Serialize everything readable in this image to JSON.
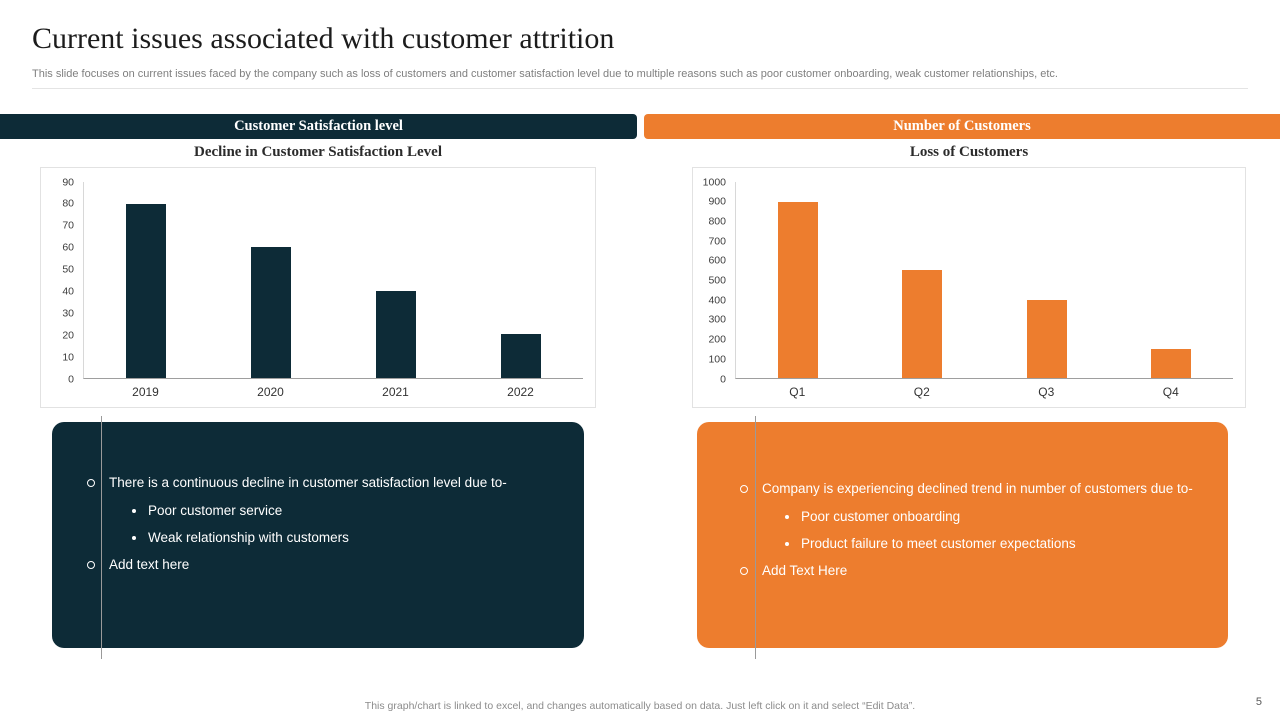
{
  "slide": {
    "title": "Current issues associated with customer attrition",
    "subtitle": "This slide focuses on current issues faced by the company such as loss of customers and customer satisfaction level due to multiple reasons such as poor customer onboarding, weak customer relationships, etc.",
    "footer_text": "This graph/chart is linked to excel, and changes automatically based on data. Just left click on it and select ",
    "footer_highlight": "“Edit Data”",
    "footer_suffix": ".",
    "page_number": "5"
  },
  "colors": {
    "dark": "#0D2B37",
    "orange": "#ED7D2E"
  },
  "sections": {
    "left": {
      "header": "Customer Satisfaction level",
      "bullets": [
        {
          "level": 1,
          "text": "There is a continuous decline in customer satisfaction level due to-"
        },
        {
          "level": 2,
          "text": "Poor customer service"
        },
        {
          "level": 2,
          "text": "Weak relationship with customers"
        },
        {
          "level": 1,
          "text": "Add text here"
        }
      ]
    },
    "right": {
      "header": "Number of Customers",
      "bullets": [
        {
          "level": 1,
          "text": "Company is experiencing declined trend in number of customers due to-"
        },
        {
          "level": 2,
          "text": "Poor customer onboarding"
        },
        {
          "level": 2,
          "text": "Product failure to meet customer expectations"
        },
        {
          "level": 1,
          "text": "Add Text Here"
        }
      ]
    }
  },
  "chart_data": [
    {
      "type": "bar",
      "title": "Decline in Customer Satisfaction Level",
      "categories": [
        "2019",
        "2020",
        "2021",
        "2022"
      ],
      "values": [
        80,
        60,
        40,
        20
      ],
      "ylim": [
        0,
        90
      ],
      "ytick_step": 10,
      "bar_color": "#0D2B37",
      "xlabel": "",
      "ylabel": "",
      "grid": false,
      "legend": "none"
    },
    {
      "type": "bar",
      "title": "Loss of Customers",
      "categories": [
        "Q1",
        "Q2",
        "Q3",
        "Q4"
      ],
      "values": [
        900,
        550,
        400,
        150
      ],
      "ylim": [
        0,
        1000
      ],
      "ytick_step": 100,
      "bar_color": "#ED7D2E",
      "xlabel": "",
      "ylabel": "",
      "grid": false,
      "legend": "none"
    }
  ]
}
